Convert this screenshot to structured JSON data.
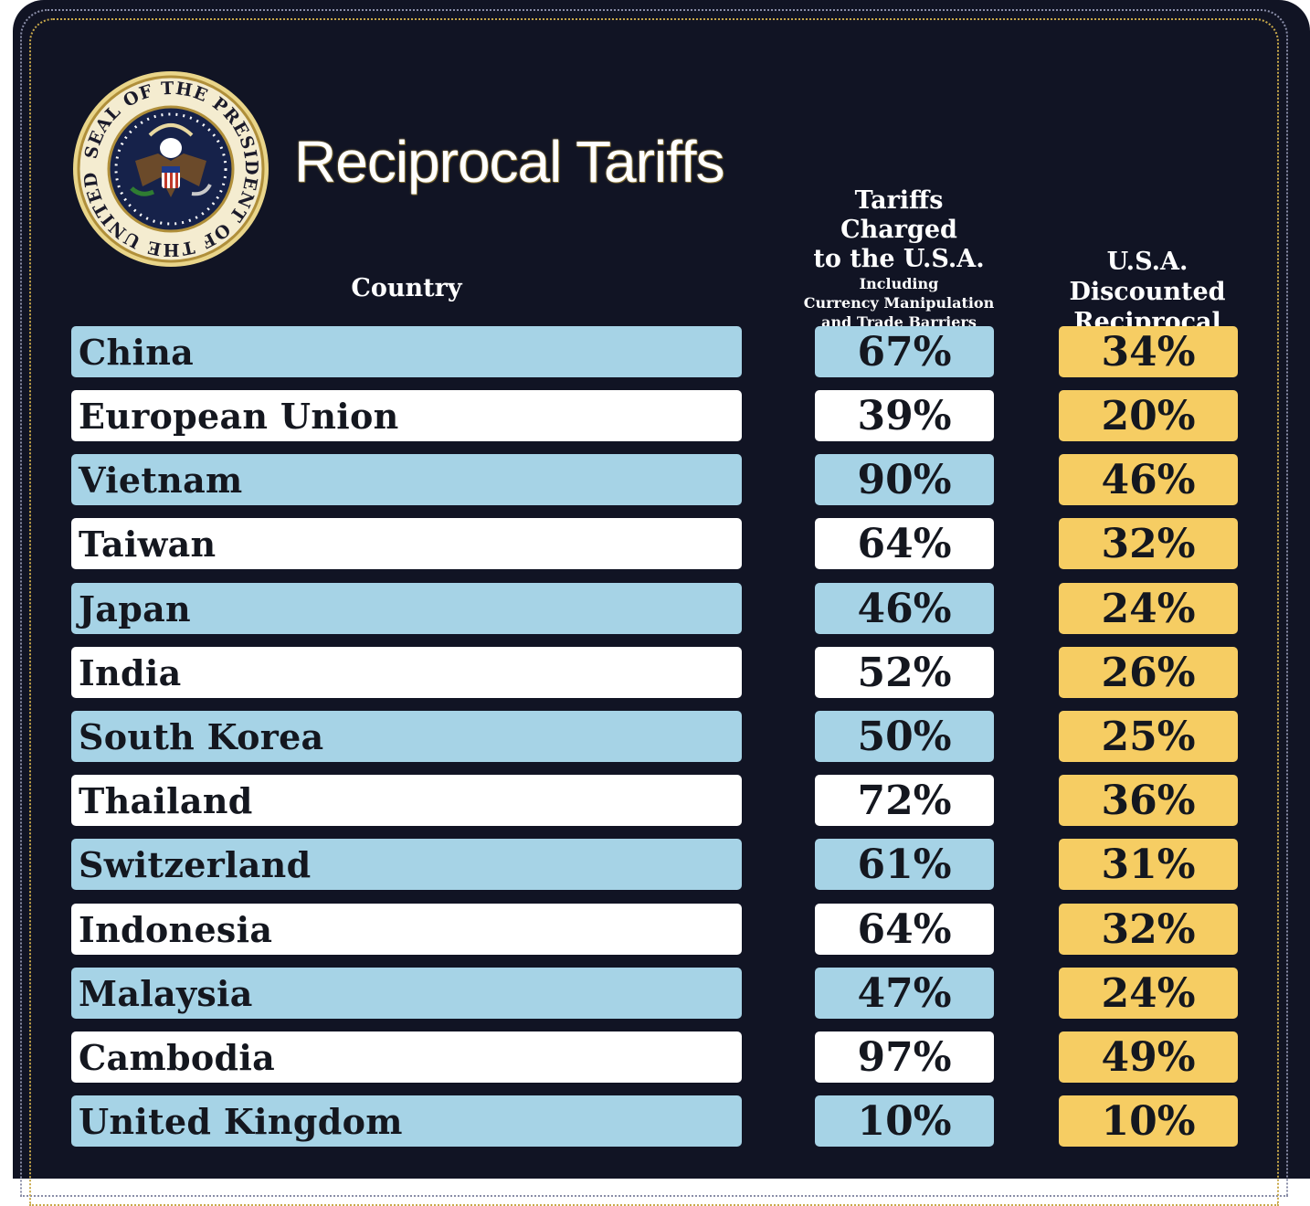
{
  "title": "Reciprocal Tariffs",
  "seal": {
    "ring_text": "SEAL OF THE PRESIDENT OF THE UNITED STATES",
    "icon": "presidential-seal-icon"
  },
  "columns": {
    "country": "Country",
    "charged_line1": "Tariffs Charged",
    "charged_line2": "to the U.S.A.",
    "charged_sub1": "Including",
    "charged_sub2": "Currency Manipulation",
    "charged_sub3": "and Trade Barriers",
    "discount_line1": "U.S.A. Discounted",
    "discount_line2": "Reciprocal Tariffs"
  },
  "colors": {
    "background": "#111424",
    "row_blue": "#a6d3e6",
    "row_white": "#ffffff",
    "discount_gold": "#f6cd63"
  },
  "rows": [
    {
      "country": "China",
      "charged": "67%",
      "discount": "34%"
    },
    {
      "country": "European Union",
      "charged": "39%",
      "discount": "20%"
    },
    {
      "country": "Vietnam",
      "charged": "90%",
      "discount": "46%"
    },
    {
      "country": "Taiwan",
      "charged": "64%",
      "discount": "32%"
    },
    {
      "country": "Japan",
      "charged": "46%",
      "discount": "24%"
    },
    {
      "country": "India",
      "charged": "52%",
      "discount": "26%"
    },
    {
      "country": "South Korea",
      "charged": "50%",
      "discount": "25%"
    },
    {
      "country": "Thailand",
      "charged": "72%",
      "discount": "36%"
    },
    {
      "country": "Switzerland",
      "charged": "61%",
      "discount": "31%"
    },
    {
      "country": "Indonesia",
      "charged": "64%",
      "discount": "32%"
    },
    {
      "country": "Malaysia",
      "charged": "47%",
      "discount": "24%"
    },
    {
      "country": "Cambodia",
      "charged": "97%",
      "discount": "49%"
    },
    {
      "country": "United Kingdom",
      "charged": "10%",
      "discount": "10%"
    }
  ]
}
